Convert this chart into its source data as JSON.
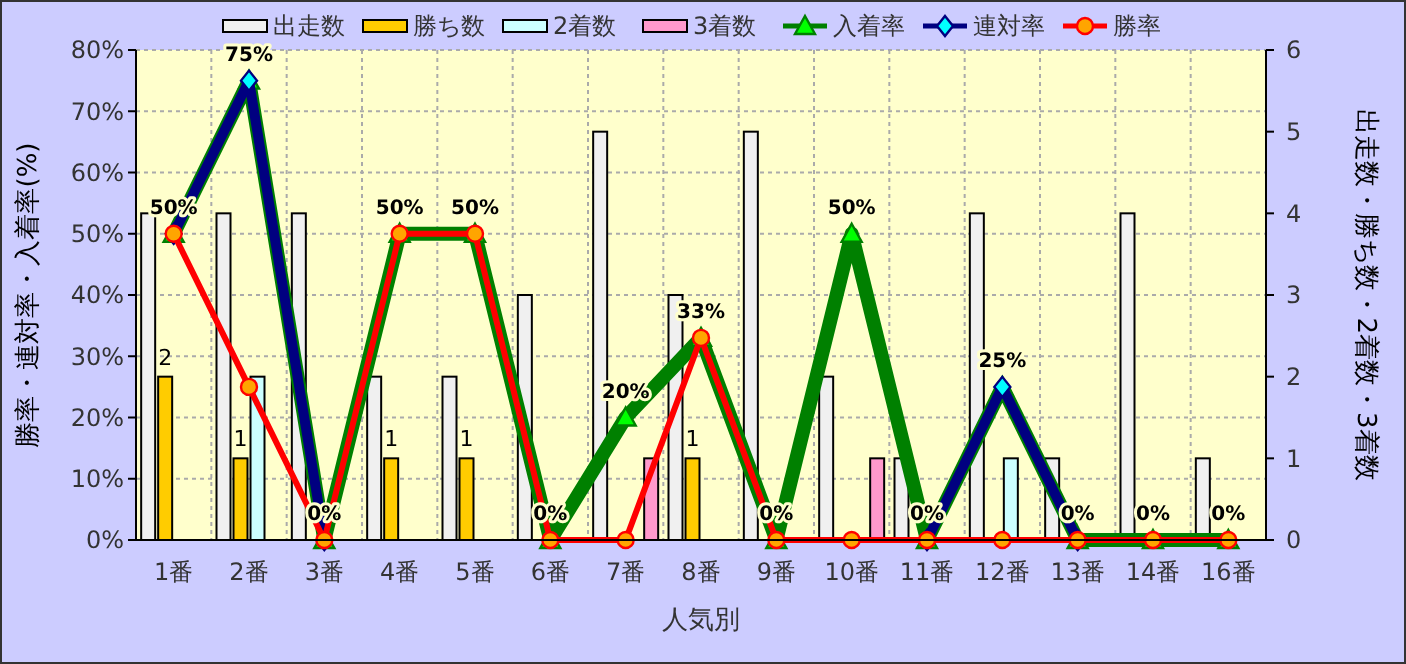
{
  "chart_data": {
    "type": "bar",
    "xlabel": "人気別",
    "ylabel": "勝率・連対率・入着率(%)",
    "y2label": "出走数・勝ち数・2着数・3着数",
    "categories": [
      "1番",
      "2番",
      "3番",
      "4番",
      "5番",
      "6番",
      "7番",
      "8番",
      "9番",
      "10番",
      "11番",
      "12番",
      "13番",
      "14番",
      "16番"
    ],
    "series": [
      {
        "name": "出走数",
        "axis": "y2",
        "color": "#f0f0f0",
        "values": [
          4,
          4,
          4,
          2,
          2,
          3,
          5,
          3,
          5,
          2,
          1,
          4,
          1,
          4,
          1
        ]
      },
      {
        "name": "勝ち数",
        "axis": "y2",
        "color": "#ffcc00",
        "values": [
          2,
          1,
          0,
          1,
          1,
          0,
          0,
          1,
          0,
          0,
          0,
          0,
          0,
          0,
          0
        ],
        "value_labels": [
          "2",
          "1",
          null,
          "1",
          "1",
          null,
          null,
          "1",
          null,
          null,
          null,
          null,
          null,
          null,
          null
        ]
      },
      {
        "name": "2着数",
        "axis": "y2",
        "color": "#ccffff",
        "values": [
          0,
          2,
          0,
          0,
          0,
          0,
          0,
          0,
          0,
          0,
          0,
          1,
          0,
          0,
          0
        ]
      },
      {
        "name": "3着数",
        "axis": "y2",
        "color": "#ff99cc",
        "values": [
          0,
          0,
          0,
          0,
          0,
          0,
          1,
          0,
          0,
          1,
          0,
          0,
          0,
          0,
          0
        ]
      },
      {
        "name": "入着率",
        "type": "line",
        "color": "#008000",
        "marker": "triangle",
        "values": [
          50,
          75,
          0,
          50,
          50,
          0,
          20,
          33,
          0,
          50,
          0,
          25,
          0,
          0,
          0
        ],
        "value_labels": [
          "50%",
          "75%",
          "0%",
          "50%",
          "50%",
          "0%",
          "20%",
          "33%",
          "0%",
          "50%",
          "0%",
          "25%",
          "0%",
          "0%",
          "0%"
        ]
      },
      {
        "name": "連対率",
        "type": "line",
        "color": "#000080",
        "marker": "diamond",
        "values": [
          50,
          75,
          0,
          null,
          null,
          null,
          null,
          null,
          null,
          null,
          0,
          25,
          0,
          null,
          null
        ]
      },
      {
        "name": "勝率",
        "type": "line",
        "color": "#ff0000",
        "marker": "circle",
        "values": [
          50,
          25,
          0,
          50,
          50,
          0,
          0,
          33,
          0,
          0,
          0,
          0,
          0,
          0,
          0
        ]
      }
    ],
    "ylim": [
      0,
      80
    ],
    "yticks": [
      {
        "value": 0,
        "label": "0%"
      },
      {
        "value": 10,
        "label": "10%"
      },
      {
        "value": 20,
        "label": "20%"
      },
      {
        "value": 30,
        "label": "30%"
      },
      {
        "value": 40,
        "label": "40%"
      },
      {
        "value": 50,
        "label": "50%"
      },
      {
        "value": 60,
        "label": "60%"
      },
      {
        "value": 70,
        "label": "70%"
      },
      {
        "value": 80,
        "label": "80%"
      }
    ],
    "y2lim": [
      0,
      6
    ],
    "y2ticks": [
      0,
      1,
      2,
      3,
      4,
      5,
      6
    ],
    "grid": true,
    "legend": "top"
  }
}
